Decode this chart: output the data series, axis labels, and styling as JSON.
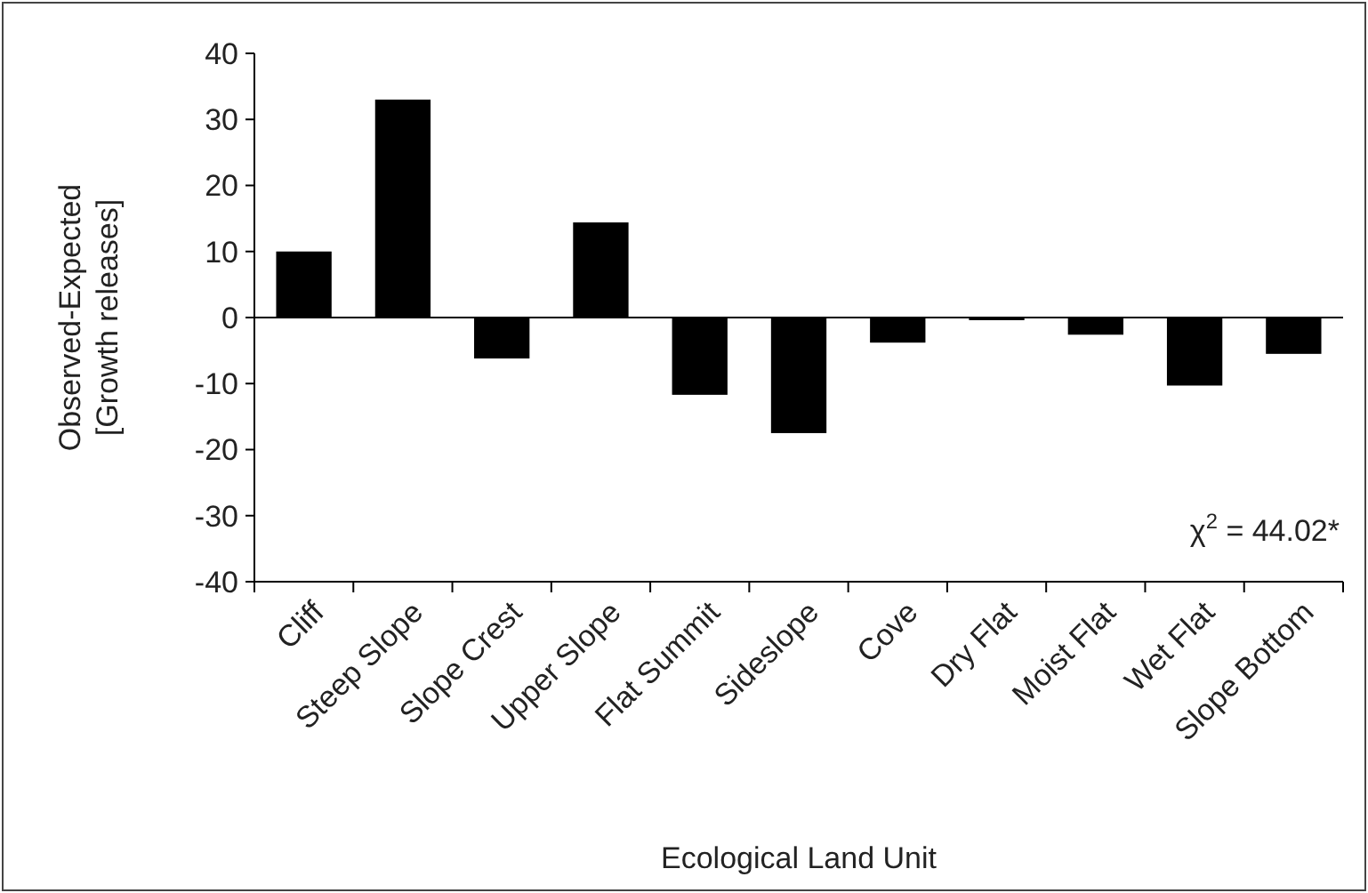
{
  "chart_data": {
    "type": "bar",
    "xlabel": "Ecological Land Unit",
    "ylabel": "Observed-Expected\n[Growth releases]",
    "categories": [
      "Cliff",
      "Steep Slope",
      "Slope Crest",
      "Upper Slope",
      "Flat Summit",
      "Sideslope",
      "Cove",
      "Dry Flat",
      "Moist Flat",
      "Wet Flat",
      "Slope Bottom"
    ],
    "values": [
      10,
      33,
      -6.2,
      14.4,
      -11.7,
      -17.5,
      -3.8,
      -0.4,
      -2.6,
      -10.3,
      -5.5
    ],
    "color": "#000000",
    "ylim": [
      -40,
      40
    ],
    "yticks": [
      -40,
      -30,
      -20,
      -10,
      0,
      10,
      20,
      30,
      40
    ],
    "annotations": [
      "χ$^{2}$ = 44.02*"
    ]
  }
}
